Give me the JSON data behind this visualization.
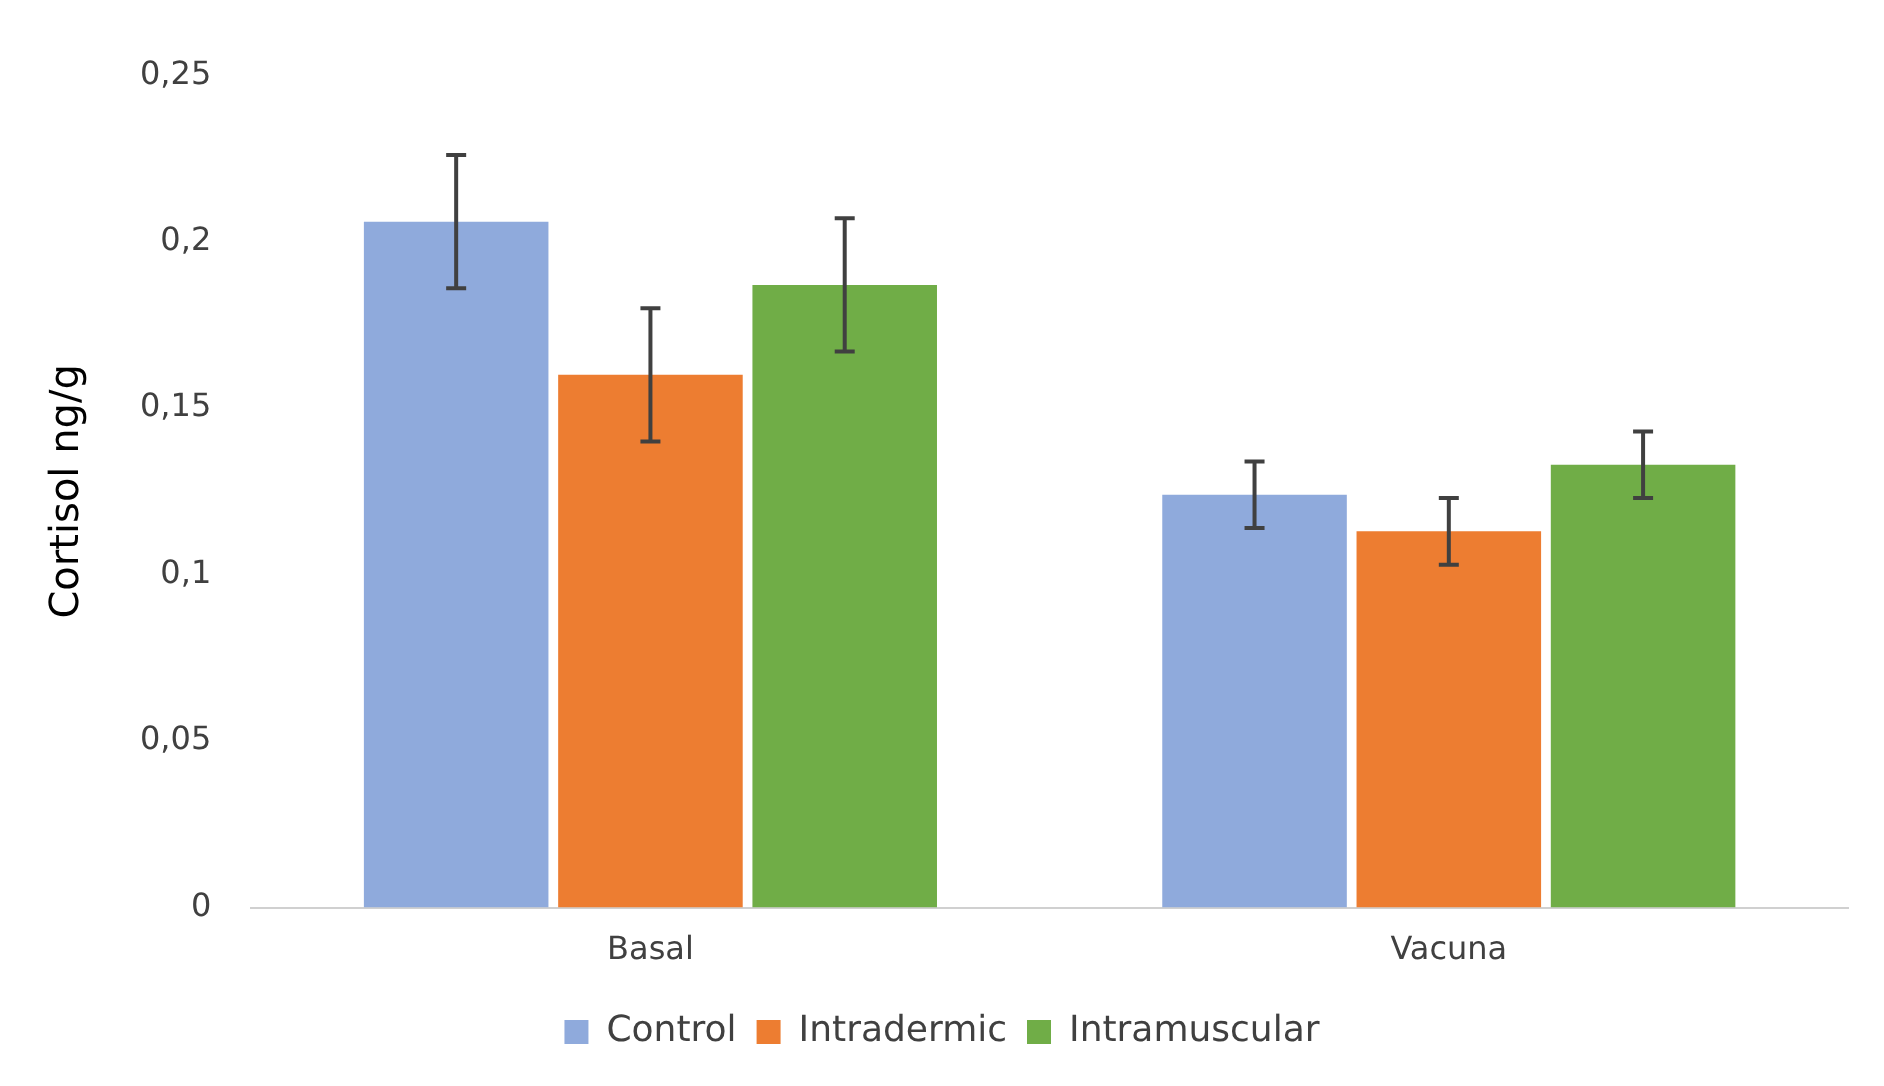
{
  "chart_data": {
    "type": "bar",
    "ylabel": "Cortisol ng/g",
    "categories": [
      "Basal",
      "Vacuna"
    ],
    "series": [
      {
        "name": "Control",
        "color": "#8faadc",
        "values": [
          0.206,
          0.124
        ],
        "errors": [
          0.02,
          0.01
        ]
      },
      {
        "name": "Intradermic",
        "color": "#ed7d31",
        "values": [
          0.16,
          0.113
        ],
        "errors": [
          0.02,
          0.01
        ]
      },
      {
        "name": "Intramuscular",
        "color": "#70ad47",
        "values": [
          0.187,
          0.133
        ],
        "errors": [
          0.02,
          0.01
        ]
      }
    ],
    "ylim": [
      0,
      0.25
    ],
    "yticks": [
      {
        "value": 0,
        "label": "0"
      },
      {
        "value": 0.05,
        "label": "0,05"
      },
      {
        "value": 0.1,
        "label": "0,1"
      },
      {
        "value": 0.15,
        "label": "0,15"
      },
      {
        "value": 0.2,
        "label": "0,2"
      },
      {
        "value": 0.25,
        "label": "0,25"
      }
    ],
    "grid": false,
    "legend": "bottom"
  }
}
